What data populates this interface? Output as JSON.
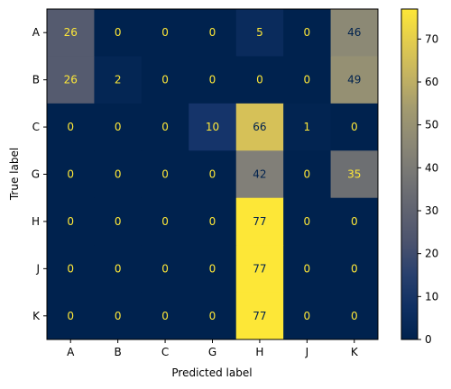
{
  "chart_data": {
    "type": "heatmap",
    "title": "",
    "xlabel": "Predicted label",
    "ylabel": "True label",
    "x_categories": [
      "A",
      "B",
      "C",
      "G",
      "H",
      "J",
      "K"
    ],
    "y_categories": [
      "A",
      "B",
      "C",
      "G",
      "H",
      "J",
      "K"
    ],
    "values": [
      [
        26,
        0,
        0,
        0,
        5,
        0,
        46
      ],
      [
        26,
        2,
        0,
        0,
        0,
        0,
        49
      ],
      [
        0,
        0,
        0,
        10,
        66,
        1,
        0
      ],
      [
        0,
        0,
        0,
        0,
        42,
        0,
        35
      ],
      [
        0,
        0,
        0,
        0,
        77,
        0,
        0
      ],
      [
        0,
        0,
        0,
        0,
        77,
        0,
        0
      ],
      [
        0,
        0,
        0,
        0,
        77,
        0,
        0
      ]
    ],
    "colormap": "cividis",
    "colorbar": {
      "range": [
        0,
        77
      ],
      "ticks": [
        0,
        10,
        20,
        30,
        40,
        50,
        60,
        70
      ]
    }
  }
}
